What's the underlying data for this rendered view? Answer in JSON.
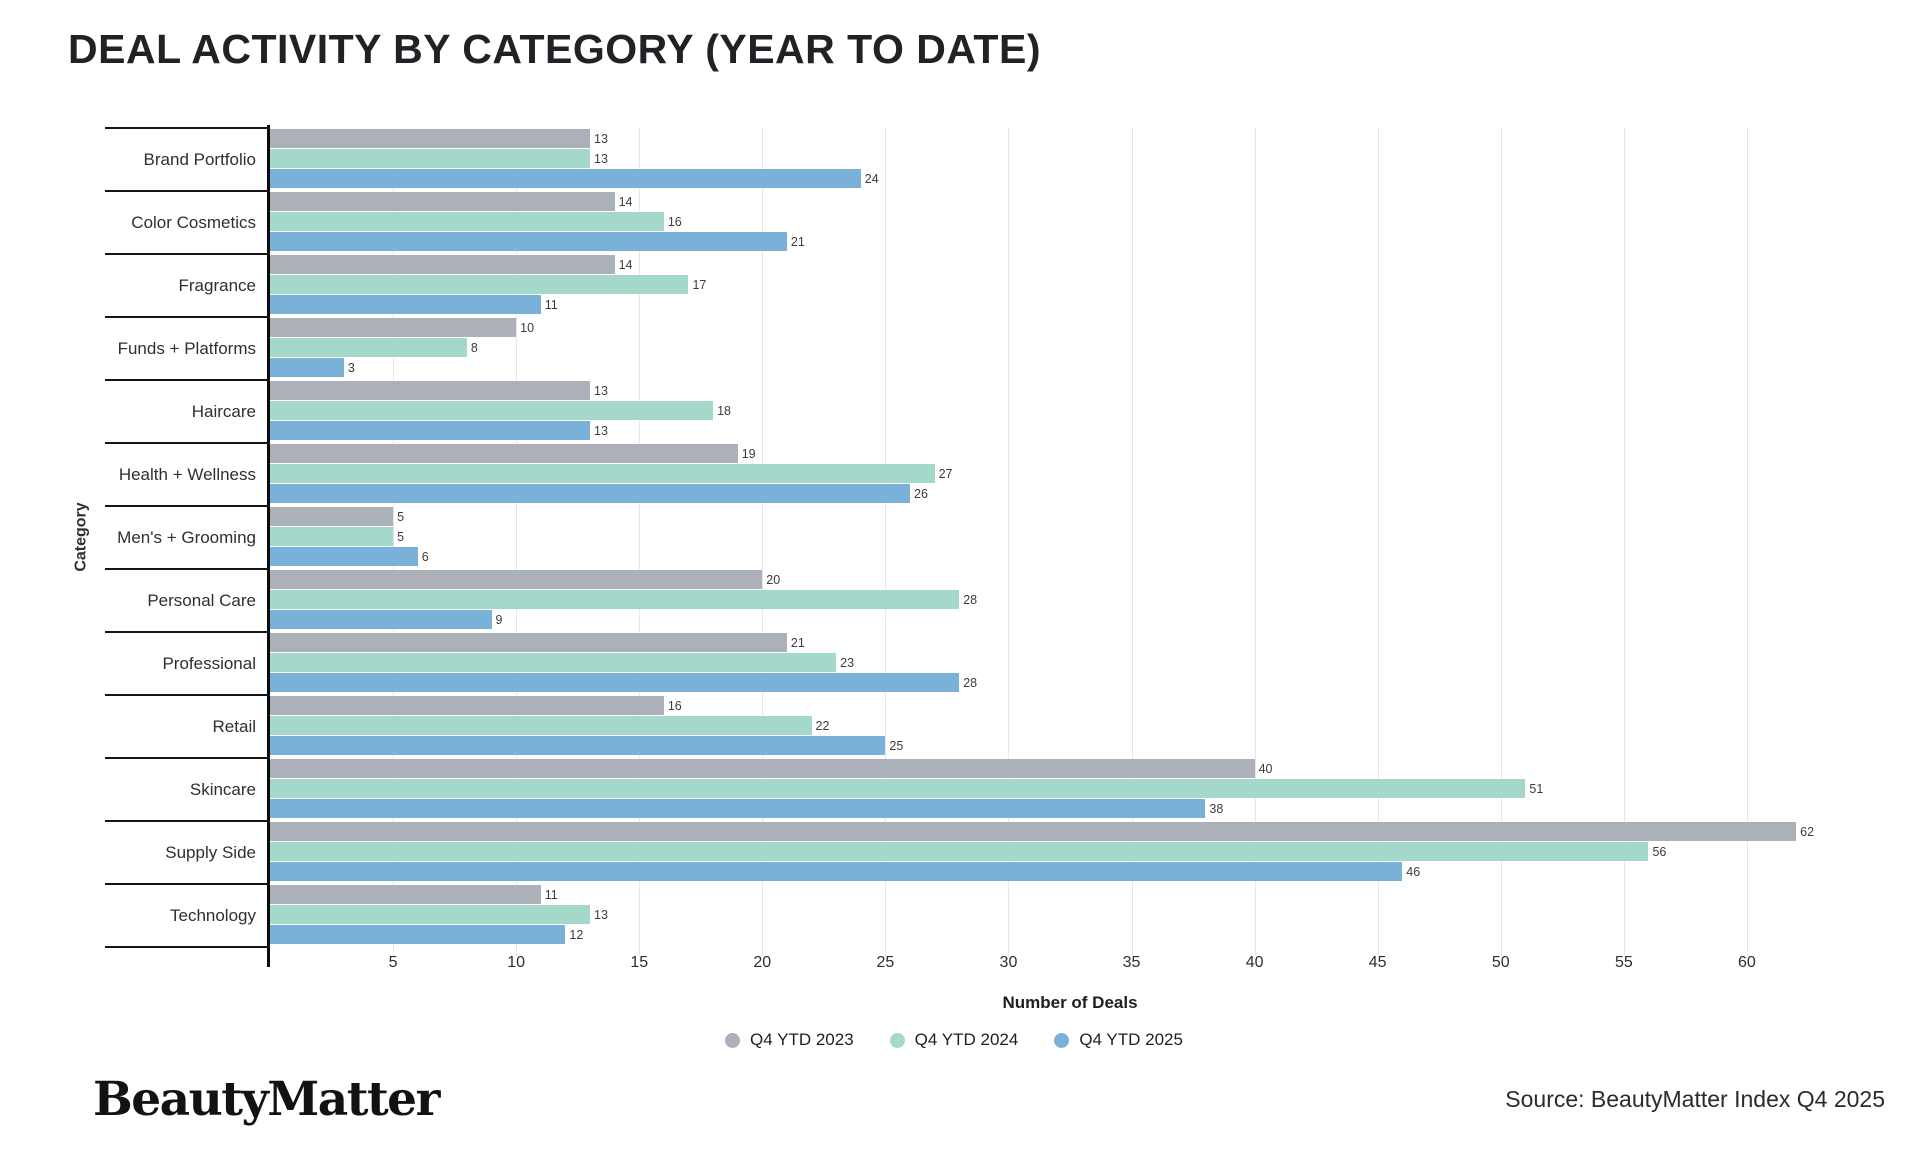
{
  "title": "DEAL ACTIVITY BY CATEGORY (YEAR TO DATE)",
  "chart_data": {
    "type": "bar",
    "orientation": "horizontal",
    "title": "DEAL ACTIVITY BY CATEGORY (YEAR TO DATE)",
    "categories": [
      "Brand Portfolio",
      "Color Cosmetics",
      "Fragrance",
      "Funds + Platforms",
      "Haircare",
      "Health + Wellness",
      "Men's + Grooming",
      "Personal Care",
      "Professional",
      "Retail",
      "Skincare",
      "Supply Side",
      "Technology"
    ],
    "series": [
      {
        "name": "Q4 YTD 2023",
        "color": "#abb0b9",
        "values": [
          13,
          14,
          14,
          10,
          13,
          19,
          5,
          20,
          21,
          16,
          40,
          62,
          11
        ]
      },
      {
        "name": "Q4 YTD 2024",
        "color": "#a3d8cb",
        "values": [
          13,
          16,
          17,
          8,
          18,
          27,
          5,
          28,
          23,
          22,
          51,
          56,
          13
        ]
      },
      {
        "name": "Q4 YTD 2025",
        "color": "#79b1d8",
        "values": [
          24,
          21,
          11,
          3,
          13,
          26,
          6,
          9,
          28,
          25,
          38,
          46,
          12
        ]
      }
    ],
    "xlabel": "Number of Deals",
    "ylabel": "Category",
    "xlim": [
      0,
      65
    ],
    "xticks": [
      5,
      10,
      15,
      20,
      25,
      30,
      35,
      40,
      45,
      50,
      55,
      60
    ],
    "grid": true,
    "value_labels": true,
    "legend_position": "bottom"
  },
  "footer": {
    "logo_text": "BeautyMatter",
    "source": "Source: BeautyMatter Index Q4 2025"
  }
}
